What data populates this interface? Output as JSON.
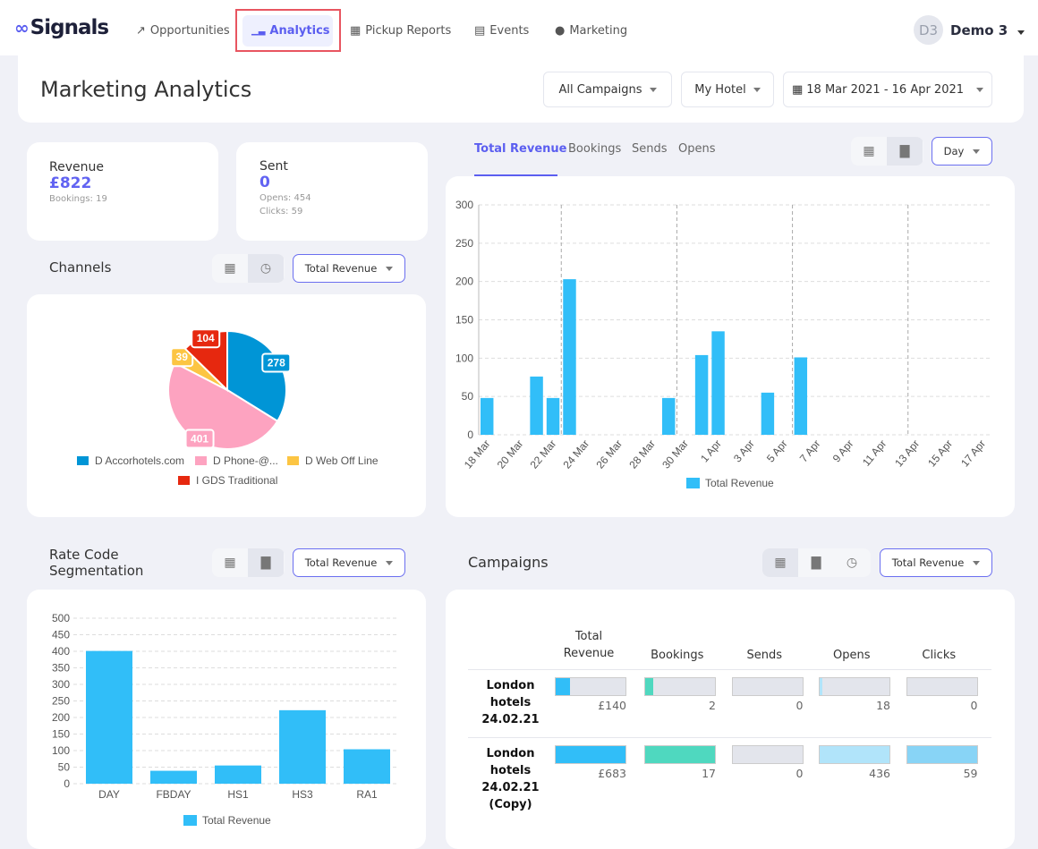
{
  "brand": "Signals",
  "nav": [
    {
      "label": "Opportunities",
      "icon": "rocket-icon"
    },
    {
      "label": "Analytics",
      "icon": "chart-line-icon",
      "active": true
    },
    {
      "label": "Pickup Reports",
      "icon": "grid-icon"
    },
    {
      "label": "Events",
      "icon": "calendar-icon"
    },
    {
      "label": "Marketing",
      "icon": "user-icon"
    }
  ],
  "user": {
    "initials": "D3",
    "name": "Demo 3"
  },
  "page": {
    "title": "Marketing Analytics",
    "filters": {
      "campaign": "All Campaigns",
      "hotel": "My Hotel",
      "date_range": "18 Mar 2021 - 16 Apr 2021"
    }
  },
  "stats": {
    "revenue": {
      "label": "Revenue",
      "value": "£822",
      "sub": "Bookings: 19"
    },
    "sent": {
      "label": "Sent",
      "value": "0",
      "opens": "Opens: 454",
      "clicks": "Clicks: 59"
    }
  },
  "channels": {
    "title": "Channels",
    "metric": "Total Revenue"
  },
  "main_chart": {
    "tabs": [
      "Total Revenue",
      "Bookings",
      "Sends",
      "Opens"
    ],
    "active_tab": "Total Revenue",
    "period": "Day"
  },
  "rate_code": {
    "title_line1": "Rate Code",
    "title_line2": "Segmentation",
    "metric": "Total Revenue"
  },
  "campaigns": {
    "title": "Campaigns",
    "metric": "Total Revenue",
    "headers": [
      "Total Revenue",
      "Bookings",
      "Sends",
      "Opens",
      "Clicks"
    ],
    "rows": [
      {
        "name": "London hotels 24.02.21",
        "values": [
          "£140",
          "2",
          "0",
          "18",
          "0"
        ],
        "fill": [
          0.2,
          0.12,
          0,
          0.04,
          0
        ]
      },
      {
        "name": "London hotels 24.02.21 (Copy)",
        "values": [
          "£683",
          "17",
          "0",
          "436",
          "59"
        ],
        "fill": [
          1,
          1,
          0,
          1,
          1
        ]
      }
    ],
    "colors": [
      "#31bef8",
      "#4fd8bf",
      "#e3e5ec",
      "#b1e4fa",
      "#88d4f6"
    ]
  },
  "chart_data": [
    {
      "type": "pie",
      "values": [
        278,
        401,
        39,
        104
      ],
      "labels": [
        "D Accorhotels.com",
        "D Phone-@...",
        "D Web Off Line",
        "I GDS Traditional"
      ],
      "colors": [
        "#0095d6",
        "#fda3c0",
        "#fcc543",
        "#e6280f"
      ],
      "legend": "bottom"
    },
    {
      "type": "bar",
      "x_ticks": [
        "18 Mar",
        "20 Mar",
        "22 Mar",
        "24 Mar",
        "26 Mar",
        "28 Mar",
        "30 Mar",
        "1 Apr",
        "3 Apr",
        "5 Apr",
        "7 Apr",
        "9 Apr",
        "11 Apr",
        "13 Apr",
        "15 Apr",
        "17 Apr"
      ],
      "x": [
        "18 Mar",
        "21 Mar",
        "22 Mar",
        "23 Mar",
        "29 Mar",
        "31 Mar",
        "1 Apr",
        "4 Apr",
        "6 Apr"
      ],
      "values": [
        48,
        76,
        48,
        203,
        48,
        104,
        135,
        55,
        101
      ],
      "x_range": [
        "18 Mar",
        "17 Apr"
      ],
      "ylim": [
        0,
        300
      ],
      "y_ticks": [
        0,
        50,
        100,
        150,
        200,
        250,
        300
      ],
      "series": [
        {
          "name": "Total Revenue",
          "color": "#31bef8"
        }
      ],
      "legend": "bottom",
      "grid": true
    },
    {
      "type": "bar",
      "categories": [
        "DAY",
        "FBDAY",
        "HS1",
        "HS3",
        "RA1"
      ],
      "values": [
        401,
        39,
        55,
        222,
        104
      ],
      "ylim": [
        0,
        500
      ],
      "y_ticks": [
        0,
        50,
        100,
        150,
        200,
        250,
        300,
        350,
        400,
        450,
        500
      ],
      "series": [
        {
          "name": "Total Revenue",
          "color": "#31bef8"
        }
      ],
      "legend": "bottom",
      "grid": true
    }
  ]
}
